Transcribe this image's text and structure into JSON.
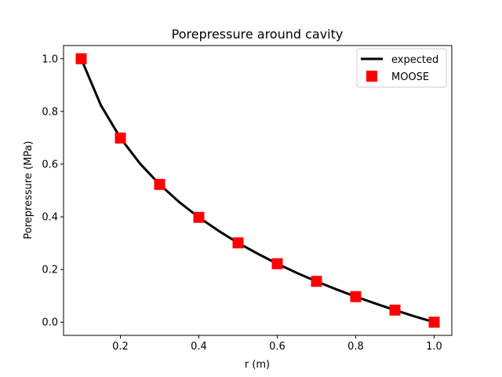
{
  "chart_data": {
    "type": "line",
    "title": "Porepressure around cavity",
    "xlabel": "r (m)",
    "ylabel": "Porepressure (MPa)",
    "xlim": [
      0.055,
      1.045
    ],
    "ylim": [
      -0.05,
      1.05
    ],
    "xticks": [
      "0.2",
      "0.4",
      "0.6",
      "0.8",
      "1.0"
    ],
    "xtick_values": [
      0.2,
      0.4,
      0.6,
      0.8,
      1.0
    ],
    "yticks": [
      "0.0",
      "0.2",
      "0.4",
      "0.6",
      "0.8",
      "1.0"
    ],
    "ytick_values": [
      0.0,
      0.2,
      0.4,
      0.6,
      0.8,
      1.0
    ],
    "grid": false,
    "legend_position": "top-right",
    "series": [
      {
        "name": "expected",
        "style": "line",
        "color": "#000000",
        "x": [
          0.1,
          0.15,
          0.2,
          0.25,
          0.3,
          0.35,
          0.4,
          0.45,
          0.5,
          0.55,
          0.6,
          0.65,
          0.7,
          0.75,
          0.8,
          0.85,
          0.9,
          0.95,
          1.0
        ],
        "y": [
          1.0,
          0.824,
          0.699,
          0.602,
          0.523,
          0.456,
          0.398,
          0.347,
          0.301,
          0.26,
          0.222,
          0.187,
          0.155,
          0.125,
          0.097,
          0.071,
          0.046,
          0.022,
          0.0
        ]
      },
      {
        "name": "MOOSE",
        "style": "square-markers",
        "color": "#ff0000",
        "x": [
          0.1,
          0.2,
          0.3,
          0.4,
          0.5,
          0.6,
          0.7,
          0.8,
          0.9,
          1.0
        ],
        "y": [
          1.0,
          0.699,
          0.523,
          0.398,
          0.301,
          0.222,
          0.155,
          0.097,
          0.046,
          0.0
        ]
      }
    ]
  }
}
